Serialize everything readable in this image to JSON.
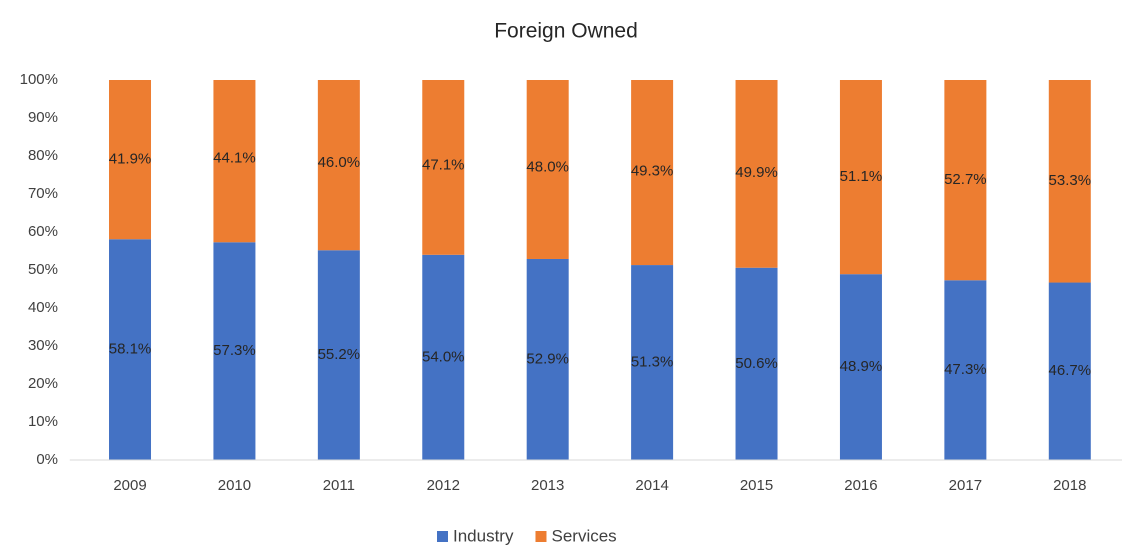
{
  "chart_data": {
    "type": "stacked_bar",
    "title": "Foreign Owned",
    "categories": [
      "2009",
      "2010",
      "2011",
      "2012",
      "2013",
      "2014",
      "2015",
      "2016",
      "2017",
      "2018"
    ],
    "series": [
      {
        "name": "Industry",
        "color": "#4472c4",
        "values": [
          58.1,
          57.3,
          55.2,
          54.0,
          52.9,
          51.3,
          50.6,
          48.9,
          47.3,
          46.7
        ],
        "value_labels": [
          "58.1%",
          "57.3%",
          "55.2%",
          "54.0%",
          "52.9%",
          "51.3%",
          "50.6%",
          "48.9%",
          "47.3%",
          "46.7%"
        ]
      },
      {
        "name": "Services",
        "color": "#ed7d31",
        "values": [
          41.9,
          44.1,
          46.0,
          47.1,
          48.0,
          49.3,
          49.9,
          51.1,
          52.7,
          53.3
        ],
        "value_labels": [
          "41.9%",
          "44.1%",
          "46.0%",
          "47.1%",
          "48.0%",
          "49.3%",
          "49.9%",
          "51.1%",
          "52.7%",
          "53.3%"
        ]
      }
    ],
    "ylim": [
      0,
      100
    ],
    "yticks": [
      {
        "value": 0,
        "label": "0%"
      },
      {
        "value": 10,
        "label": "10%"
      },
      {
        "value": 20,
        "label": "20%"
      },
      {
        "value": 30,
        "label": "30%"
      },
      {
        "value": 40,
        "label": "40%"
      },
      {
        "value": 50,
        "label": "50%"
      },
      {
        "value": 60,
        "label": "60%"
      },
      {
        "value": 70,
        "label": "70%"
      },
      {
        "value": 80,
        "label": "80%"
      },
      {
        "value": 90,
        "label": "90%"
      },
      {
        "value": 100,
        "label": "100%"
      }
    ],
    "grid": false,
    "legend": "bottom"
  }
}
